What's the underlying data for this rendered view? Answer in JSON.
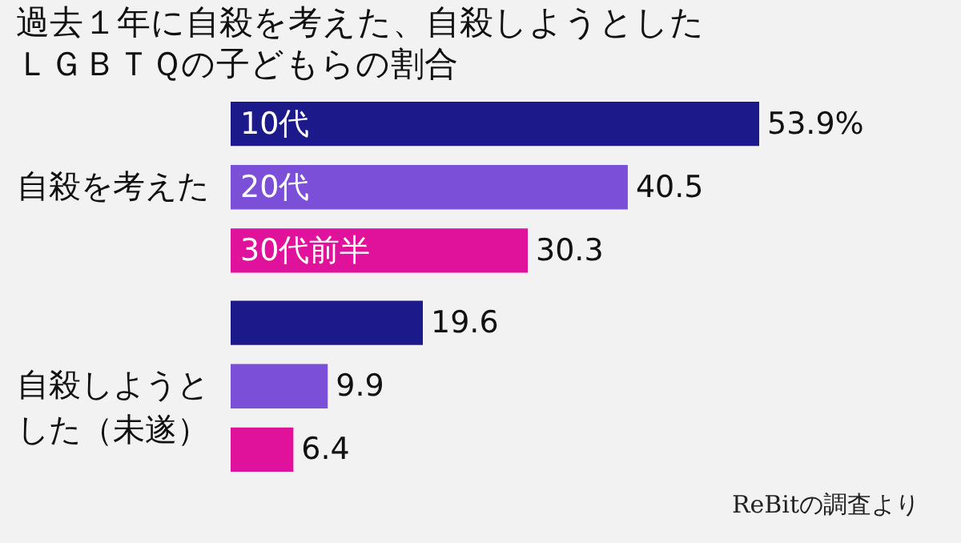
{
  "chart_data": {
    "type": "bar",
    "orientation": "horizontal",
    "title": "過去１年に自殺を考えた、自殺しようとしたＬＧＢＴＱの子どもらの割合",
    "categories": [
      "自殺を考えた",
      "自殺しようとした（未遂）"
    ],
    "series": [
      {
        "name": "10代",
        "color": "#1c1a8a",
        "values": [
          53.9,
          19.6
        ],
        "value_labels": [
          "53.9%",
          "19.6"
        ]
      },
      {
        "name": "20代",
        "color": "#7b4fd8",
        "values": [
          40.5,
          9.9
        ],
        "value_labels": [
          "40.5",
          "9.9"
        ]
      },
      {
        "name": "30代前半",
        "color": "#e0119b",
        "values": [
          30.3,
          6.4
        ],
        "value_labels": [
          "30.3",
          "6.4"
        ]
      }
    ],
    "tick_labels": "y",
    "legend": false,
    "annotations": [
      "ReBitの調査より"
    ]
  }
}
